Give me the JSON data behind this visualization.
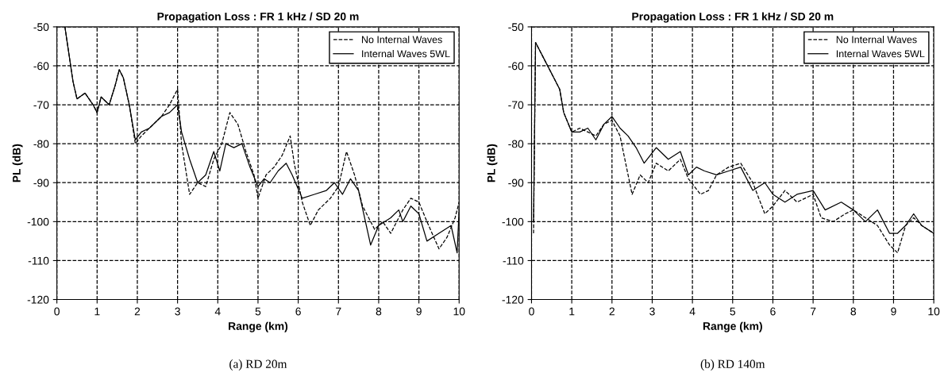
{
  "chart_data": [
    {
      "type": "line",
      "title": "Propagation Loss : FR 1 kHz / SD 20 m",
      "xlabel": "Range (km)",
      "ylabel": "PL (dB)",
      "annotations": [
        "(a) RD 20m"
      ],
      "xlim": [
        0,
        10
      ],
      "ylim": [
        -120,
        -50
      ],
      "xticks": [
        0,
        1,
        2,
        3,
        4,
        5,
        6,
        7,
        8,
        9,
        10
      ],
      "yticks": [
        -120,
        -110,
        -100,
        -90,
        -80,
        -70,
        -60,
        -50
      ],
      "grid": true,
      "legend": "top right",
      "series": [
        {
          "name": "No Internal Waves",
          "color": "#000000",
          "line_style": "dashed",
          "x": [
            0.2,
            0.4,
            0.5,
            0.7,
            0.9,
            1.0,
            1.1,
            1.3,
            1.45,
            1.55,
            1.65,
            1.8,
            1.95,
            2.1,
            2.3,
            2.6,
            2.8,
            3.0,
            3.1,
            3.3,
            3.5,
            3.7,
            3.9,
            4.1,
            4.3,
            4.5,
            4.7,
            4.9,
            5.0,
            5.2,
            5.4,
            5.6,
            5.8,
            5.9,
            6.1,
            6.3,
            6.5,
            6.8,
            7.0,
            7.2,
            7.4,
            7.6,
            7.9,
            8.1,
            8.3,
            8.6,
            8.8,
            9.0,
            9.2,
            9.5,
            9.7,
            9.9,
            10.0
          ],
          "values": [
            -50,
            -64,
            -68.5,
            -67,
            -70,
            -72,
            -68,
            -70,
            -65,
            -61,
            -63,
            -70,
            -80,
            -78,
            -76,
            -73,
            -70,
            -66,
            -80,
            -93,
            -90,
            -91,
            -84,
            -80,
            -72,
            -75,
            -82,
            -88,
            -94,
            -88,
            -86,
            -83,
            -78,
            -85,
            -95,
            -101,
            -97,
            -94,
            -91,
            -82,
            -88,
            -96,
            -102,
            -100,
            -103,
            -97,
            -94,
            -95,
            -100,
            -107,
            -104,
            -99,
            -95
          ]
        },
        {
          "name": "Internal Waves 5WL",
          "color": "#000000",
          "line_style": "solid",
          "x": [
            0.2,
            0.4,
            0.5,
            0.7,
            0.9,
            1.0,
            1.1,
            1.3,
            1.45,
            1.55,
            1.65,
            1.8,
            1.95,
            2.1,
            2.3,
            2.6,
            2.8,
            3.0,
            3.1,
            3.3,
            3.5,
            3.7,
            3.9,
            4.05,
            4.2,
            4.4,
            4.6,
            4.8,
            5.0,
            5.15,
            5.3,
            5.5,
            5.7,
            5.85,
            6.1,
            6.4,
            6.7,
            6.9,
            7.1,
            7.3,
            7.5,
            7.8,
            8.0,
            8.3,
            8.5,
            8.6,
            8.8,
            9.0,
            9.2,
            9.5,
            9.8,
            9.95,
            10.0
          ],
          "values": [
            -50,
            -64,
            -68.5,
            -67,
            -70,
            -72,
            -68,
            -70,
            -65,
            -61,
            -63,
            -70,
            -79,
            -77,
            -76,
            -73,
            -72,
            -70,
            -77,
            -84,
            -90,
            -88,
            -82,
            -87,
            -80,
            -81,
            -80,
            -86,
            -91,
            -89,
            -90,
            -87,
            -85,
            -88,
            -94,
            -93,
            -92,
            -90,
            -93,
            -89,
            -92,
            -106,
            -101,
            -99,
            -97,
            -100,
            -96,
            -98,
            -105,
            -103,
            -101,
            -108,
            -97
          ]
        }
      ]
    },
    {
      "type": "line",
      "title": "Propagation Loss : FR 1 kHz / SD 20 m",
      "xlabel": "Range (km)",
      "ylabel": "PL (dB)",
      "annotations": [
        "(b) RD 140m"
      ],
      "xlim": [
        0,
        10
      ],
      "ylim": [
        -120,
        -50
      ],
      "xticks": [
        0,
        1,
        2,
        3,
        4,
        5,
        6,
        7,
        8,
        9,
        10
      ],
      "yticks": [
        -120,
        -110,
        -100,
        -90,
        -80,
        -70,
        -60,
        -50
      ],
      "grid": true,
      "legend": "top right",
      "series": [
        {
          "name": "No Internal Waves",
          "color": "#000000",
          "line_style": "dashed",
          "x": [
            0.05,
            0.1,
            0.3,
            0.5,
            0.7,
            0.8,
            1.0,
            1.2,
            1.4,
            1.6,
            1.8,
            2.0,
            2.2,
            2.4,
            2.5,
            2.7,
            2.9,
            3.1,
            3.4,
            3.7,
            3.9,
            4.2,
            4.4,
            4.6,
            4.9,
            5.2,
            5.5,
            5.8,
            6.0,
            6.3,
            6.6,
            7.0,
            7.2,
            7.5,
            7.8,
            8.0,
            8.3,
            8.6,
            8.9,
            9.1,
            9.3,
            9.5,
            9.7,
            10.0
          ],
          "values": [
            -103,
            -54,
            -58,
            -62,
            -66,
            -72,
            -77,
            -76,
            -77,
            -78,
            -75,
            -74,
            -78,
            -88,
            -93,
            -88,
            -90,
            -85,
            -87,
            -84,
            -89,
            -93,
            -92,
            -88,
            -86,
            -85,
            -90,
            -98,
            -96,
            -92,
            -95,
            -93,
            -99,
            -100,
            -98,
            -97,
            -99,
            -101,
            -106,
            -108,
            -101,
            -99,
            -101,
            -103
          ]
        },
        {
          "name": "Internal Waves 5WL",
          "color": "#000000",
          "line_style": "solid",
          "x": [
            0.05,
            0.1,
            0.3,
            0.5,
            0.7,
            0.8,
            1.0,
            1.2,
            1.4,
            1.6,
            1.8,
            2.0,
            2.2,
            2.4,
            2.6,
            2.8,
            3.1,
            3.4,
            3.7,
            3.9,
            4.1,
            4.3,
            4.6,
            4.9,
            5.2,
            5.5,
            5.8,
            6.0,
            6.3,
            6.6,
            7.0,
            7.3,
            7.7,
            8.0,
            8.3,
            8.6,
            8.9,
            9.1,
            9.3,
            9.5,
            9.7,
            10.0
          ],
          "values": [
            -100,
            -54,
            -58,
            -62,
            -66,
            -72,
            -77,
            -77,
            -76,
            -79,
            -75,
            -73,
            -76,
            -78,
            -81,
            -85,
            -81,
            -84,
            -82,
            -88,
            -86,
            -87,
            -88,
            -87,
            -86,
            -92,
            -90,
            -93,
            -95,
            -93,
            -92,
            -97,
            -95,
            -97,
            -100,
            -97,
            -103,
            -103,
            -101,
            -98,
            -101,
            -103
          ]
        }
      ]
    }
  ]
}
